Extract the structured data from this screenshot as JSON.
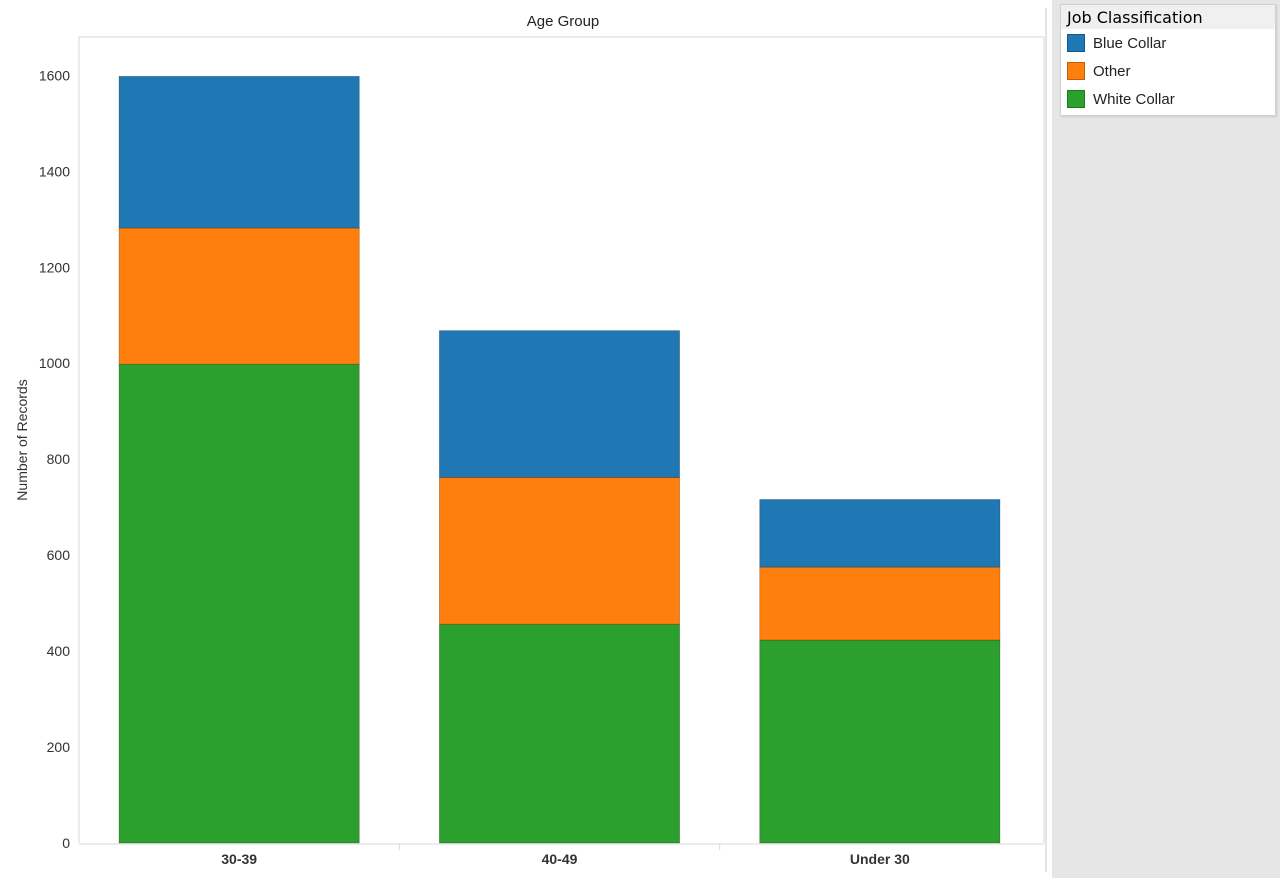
{
  "chart_data": {
    "type": "bar",
    "stacked": true,
    "title": "Age Group",
    "xlabel": "",
    "ylabel": "Number of Records",
    "categories": [
      "30-39",
      "40-49",
      "Under 30"
    ],
    "series": [
      {
        "name": "White Collar",
        "color": "#2ca02c",
        "values": [
          998,
          456,
          423
        ]
      },
      {
        "name": "Other",
        "color": "#ff7f0e",
        "values": [
          284,
          306,
          152
        ]
      },
      {
        "name": "Blue Collar",
        "color": "#1f77b4",
        "values": [
          316,
          306,
          141
        ]
      }
    ],
    "ylim": [
      0,
      1680
    ],
    "yticks": [
      0,
      200,
      400,
      600,
      800,
      1000,
      1200,
      1400,
      1600
    ],
    "grid": false,
    "legend_position": "top-right"
  },
  "legend": {
    "title": "Job Classification",
    "items": [
      {
        "label": "Blue Collar",
        "color": "#1f77b4"
      },
      {
        "label": "Other",
        "color": "#ff7f0e"
      },
      {
        "label": "White Collar",
        "color": "#2ca02c"
      }
    ]
  }
}
